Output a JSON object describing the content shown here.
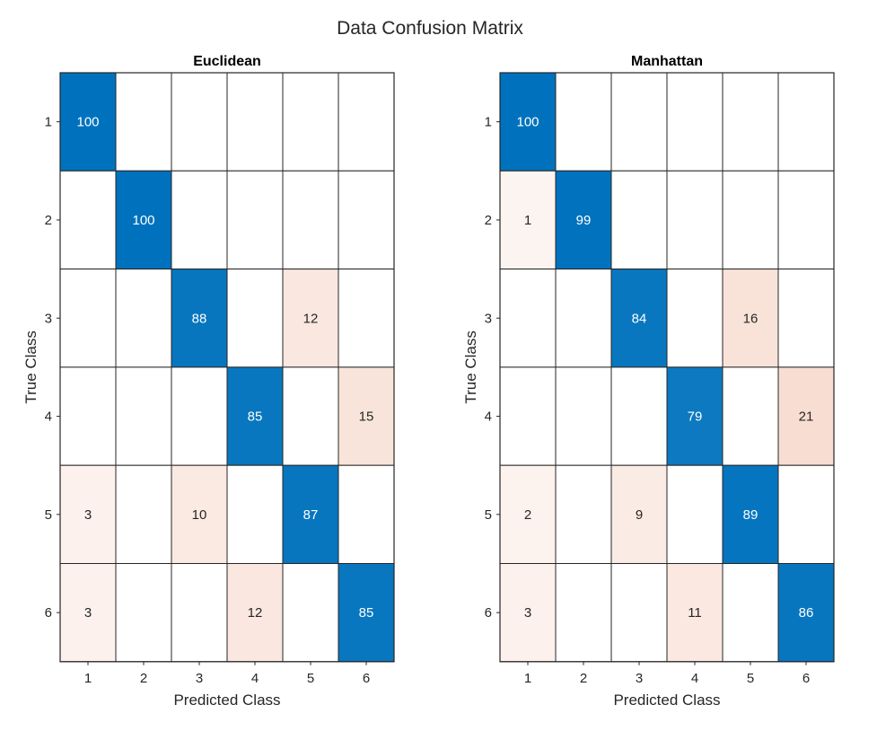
{
  "figure": {
    "title": "Data Confusion Matrix"
  },
  "chart_data": [
    {
      "type": "heatmap",
      "title": "Euclidean",
      "xlabel": "Predicted Class",
      "ylabel": "True Class",
      "x_categories": [
        "1",
        "2",
        "3",
        "4",
        "5",
        "6"
      ],
      "y_categories": [
        "1",
        "2",
        "3",
        "4",
        "5",
        "6"
      ],
      "matrix": [
        [
          100,
          0,
          0,
          0,
          0,
          0
        ],
        [
          0,
          100,
          0,
          0,
          0,
          0
        ],
        [
          0,
          0,
          88,
          0,
          12,
          0
        ],
        [
          0,
          0,
          0,
          85,
          0,
          15
        ],
        [
          3,
          0,
          10,
          0,
          87,
          0
        ],
        [
          3,
          0,
          0,
          12,
          0,
          85
        ]
      ],
      "zero_cells_blank": true,
      "colors": {
        "diagonal": "#0072BD",
        "off_diagonal": "#D95319",
        "grid": "#262626"
      }
    },
    {
      "type": "heatmap",
      "title": "Manhattan",
      "xlabel": "Predicted Class",
      "ylabel": "True Class",
      "x_categories": [
        "1",
        "2",
        "3",
        "4",
        "5",
        "6"
      ],
      "y_categories": [
        "1",
        "2",
        "3",
        "4",
        "5",
        "6"
      ],
      "matrix": [
        [
          100,
          0,
          0,
          0,
          0,
          0
        ],
        [
          1,
          99,
          0,
          0,
          0,
          0
        ],
        [
          0,
          0,
          84,
          0,
          16,
          0
        ],
        [
          0,
          0,
          0,
          79,
          0,
          21
        ],
        [
          2,
          0,
          9,
          0,
          89,
          0
        ],
        [
          3,
          0,
          0,
          11,
          0,
          86
        ]
      ],
      "zero_cells_blank": true,
      "colors": {
        "diagonal": "#0072BD",
        "off_diagonal": "#D95319",
        "grid": "#262626"
      }
    }
  ]
}
